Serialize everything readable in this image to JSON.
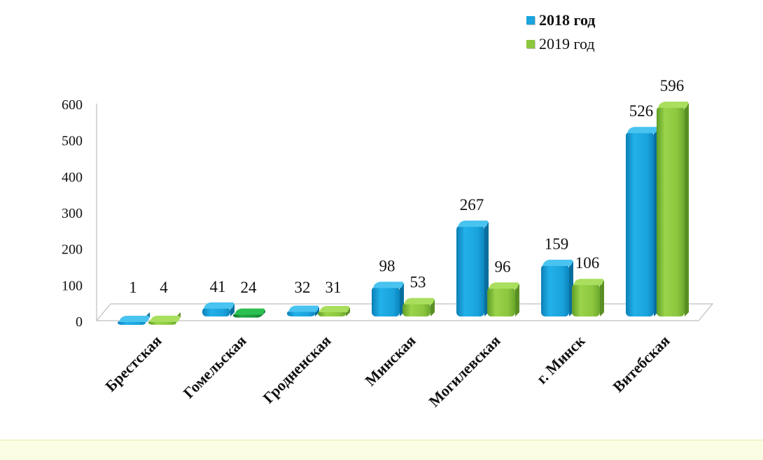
{
  "chart_data": {
    "type": "bar",
    "title": "",
    "xlabel": "",
    "ylabel": "",
    "categories": [
      "Брестская",
      "Гомельская",
      "Гродненская",
      "Минская",
      "Могилевская",
      "г. Минск",
      "Витебская"
    ],
    "series": [
      {
        "name": "2018 год",
        "values": [
          1,
          41,
          32,
          98,
          267,
          159,
          526
        ],
        "color": "#1aa3dc"
      },
      {
        "name": "2019 год",
        "values": [
          4,
          24,
          31,
          53,
          96,
          106,
          596
        ],
        "color": "#8cc63e"
      }
    ],
    "highlight": {
      "series": 1,
      "index": 1,
      "color": "#1a9a3c"
    },
    "yticks": [
      0,
      100,
      200,
      300,
      400,
      500,
      600
    ],
    "ylim": [
      0,
      600
    ],
    "legend_position": "top-right",
    "grid": false
  }
}
